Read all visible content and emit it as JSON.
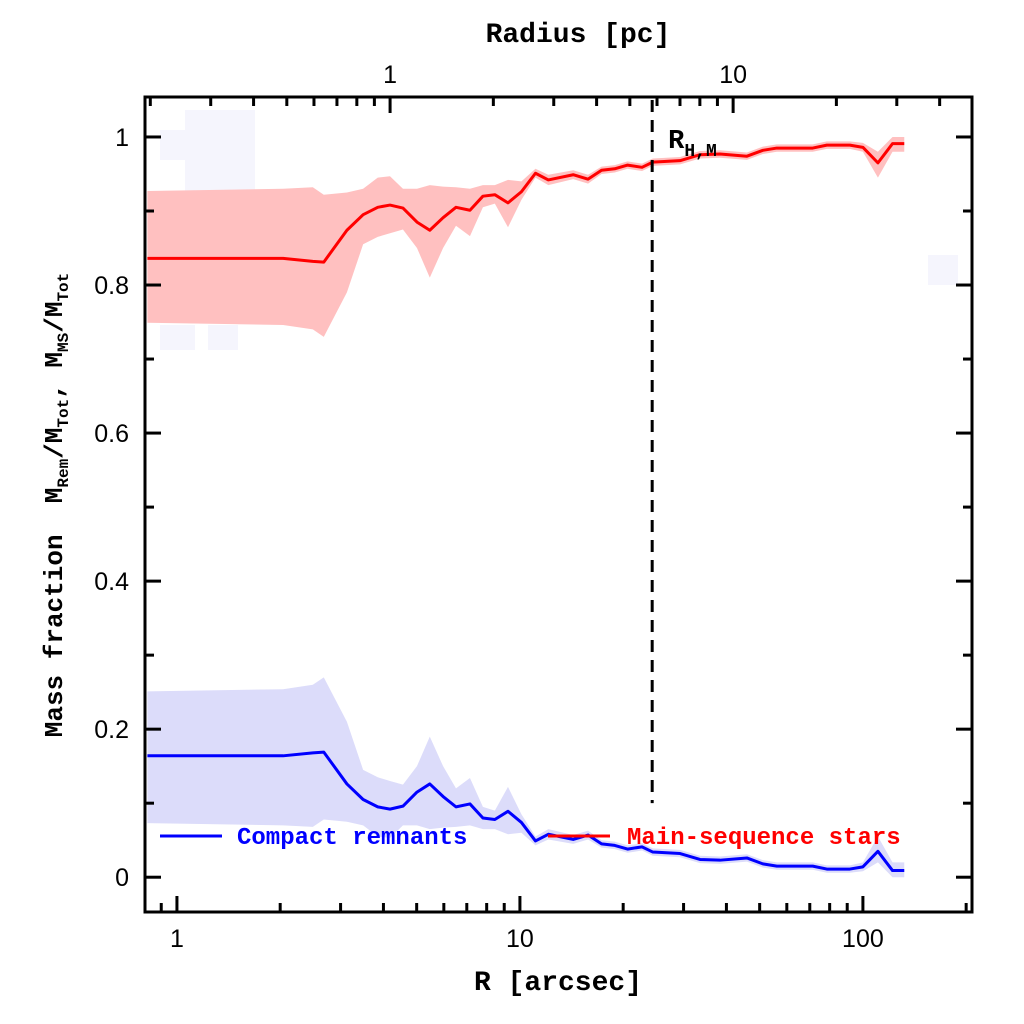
{
  "chart_data": {
    "type": "line",
    "xlabel": "R [arcsec]",
    "top_xlabel": "Radius [pc]",
    "ylabel": {
      "prefix": "Mass fraction  ",
      "parts": [
        "M",
        "Rem",
        "/M",
        "Tot",
        ", M",
        "MS",
        "/M",
        "Tot"
      ]
    },
    "x_scale": "log",
    "xlim": [
      0.807,
      208
    ],
    "top_x_scale": "log",
    "top_xlim": [
      0.193,
      49.7
    ],
    "ylim": [
      -0.047,
      1.054
    ],
    "x_ticks": [
      1,
      10,
      100
    ],
    "x_tick_labels": [
      "1",
      "10",
      "100"
    ],
    "top_x_ticks": [
      1,
      10
    ],
    "top_x_tick_labels": [
      "1",
      "10"
    ],
    "y_ticks": [
      0,
      0.2,
      0.4,
      0.6,
      0.8,
      1
    ],
    "y_tick_labels": [
      "0",
      "0.2",
      "0.4",
      "0.6",
      "0.8",
      "1"
    ],
    "grid": false,
    "legend_placement": "bottom",
    "vline": {
      "x": 24.3,
      "label": "R",
      "label_sub": "H,M",
      "style": "dashed",
      "color": "#000000"
    },
    "x": [
      0.82,
      2.04,
      2.49,
      2.68,
      3.13,
      3.49,
      3.85,
      4.18,
      4.56,
      5.01,
      5.46,
      5.97,
      6.51,
      7.15,
      7.8,
      8.45,
      9.23,
      10.1,
      11.1,
      12.1,
      14.3,
      15.8,
      17.3,
      18.9,
      20.6,
      22.7,
      24.4,
      29.3,
      33.5,
      38.3,
      45.9,
      51.1,
      56.1,
      71.4,
      78.5,
      91.6,
      100,
      110.6,
      122,
      132
    ],
    "series": [
      {
        "name": "Compact remnants",
        "color": "#0000ff",
        "band_color": "#dcdcfa",
        "values": [
          0.164,
          0.164,
          0.168,
          0.169,
          0.126,
          0.105,
          0.095,
          0.092,
          0.096,
          0.115,
          0.126,
          0.109,
          0.095,
          0.099,
          0.08,
          0.078,
          0.089,
          0.074,
          0.049,
          0.058,
          0.051,
          0.057,
          0.045,
          0.043,
          0.038,
          0.041,
          0.034,
          0.032,
          0.024,
          0.023,
          0.026,
          0.018,
          0.015,
          0.015,
          0.011,
          0.011,
          0.014,
          0.035,
          0.009,
          0.009
        ],
        "lower": [
          0.073,
          0.07,
          0.068,
          0.078,
          0.075,
          0.07,
          0.055,
          0.053,
          0.07,
          0.07,
          0.065,
          0.067,
          0.068,
          0.07,
          0.065,
          0.065,
          0.058,
          0.06,
          0.043,
          0.051,
          0.045,
          0.051,
          0.04,
          0.038,
          0.033,
          0.036,
          0.029,
          0.027,
          0.019,
          0.018,
          0.021,
          0.013,
          0.01,
          0.01,
          0.006,
          0.006,
          0.008,
          0.02,
          0,
          0
        ],
        "upper": [
          0.251,
          0.254,
          0.26,
          0.27,
          0.21,
          0.145,
          0.135,
          0.13,
          0.125,
          0.15,
          0.19,
          0.15,
          0.12,
          0.134,
          0.095,
          0.09,
          0.122,
          0.085,
          0.055,
          0.065,
          0.057,
          0.063,
          0.05,
          0.048,
          0.043,
          0.046,
          0.039,
          0.037,
          0.029,
          0.028,
          0.031,
          0.023,
          0.02,
          0.02,
          0.016,
          0.016,
          0.02,
          0.055,
          0.02,
          0.02
        ]
      },
      {
        "name": "Main-sequence stars",
        "color": "#ff0000",
        "band_color": "#ffc0c0",
        "values": [
          0.836,
          0.836,
          0.832,
          0.831,
          0.874,
          0.895,
          0.905,
          0.908,
          0.904,
          0.885,
          0.874,
          0.891,
          0.905,
          0.901,
          0.92,
          0.922,
          0.911,
          0.926,
          0.951,
          0.942,
          0.949,
          0.943,
          0.955,
          0.957,
          0.962,
          0.959,
          0.966,
          0.968,
          0.976,
          0.977,
          0.974,
          0.982,
          0.985,
          0.985,
          0.989,
          0.989,
          0.986,
          0.965,
          0.991,
          0.991
        ],
        "lower": [
          0.749,
          0.746,
          0.74,
          0.73,
          0.79,
          0.855,
          0.865,
          0.87,
          0.875,
          0.85,
          0.81,
          0.85,
          0.88,
          0.866,
          0.905,
          0.91,
          0.878,
          0.915,
          0.945,
          0.935,
          0.943,
          0.937,
          0.95,
          0.952,
          0.957,
          0.954,
          0.961,
          0.963,
          0.971,
          0.972,
          0.969,
          0.977,
          0.98,
          0.98,
          0.984,
          0.984,
          0.98,
          0.945,
          0.98,
          0.98
        ],
        "upper": [
          0.927,
          0.93,
          0.932,
          0.922,
          0.925,
          0.93,
          0.945,
          0.947,
          0.93,
          0.93,
          0.935,
          0.933,
          0.932,
          0.93,
          0.935,
          0.935,
          0.942,
          0.94,
          0.957,
          0.949,
          0.955,
          0.949,
          0.96,
          0.962,
          0.967,
          0.964,
          0.971,
          0.973,
          0.981,
          0.982,
          0.979,
          0.987,
          0.99,
          0.99,
          0.994,
          0.994,
          0.992,
          0.98,
          1.0,
          1.0
        ]
      }
    ]
  }
}
